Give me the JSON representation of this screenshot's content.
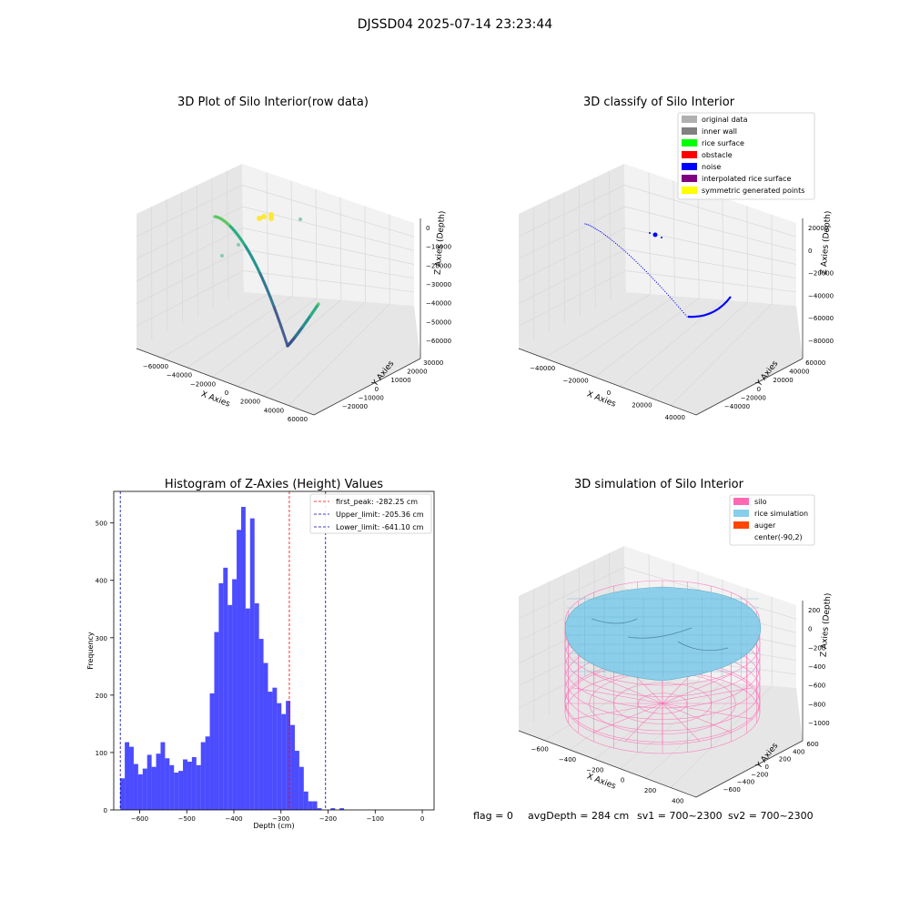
{
  "figure": {
    "suptitle": "DJSSD04 2025-07-14 23:23:44",
    "footer": {
      "flag": "flag = 0",
      "avg_depth": "avgDepth = 284 cm",
      "sv1": "sv1 = 700~2300",
      "sv2": "sv2 = 700~2300"
    }
  },
  "colors": {
    "pane": "#f2f2f2",
    "pane_dark": "#e6e6e6",
    "grid": "#d8d8d8",
    "hist_bar": "#0000ff",
    "first_peak": "#ff0000",
    "limit_line": "#0000aa",
    "noise": "#0000ff",
    "silo": "#ff69b4",
    "rice": "#87ceeb",
    "auger": "#ff4500"
  },
  "chart_data": [
    {
      "type": "scatter",
      "projection": "3d",
      "title": "3D Plot of Silo Interior(row data)",
      "xlabel": "X Axies",
      "ylabel": "Y Axies",
      "zlabel": "Z Axies (Depth)",
      "xticks": [
        "−60000",
        "−40000",
        "−20000",
        "0",
        "20000",
        "40000",
        "60000"
      ],
      "yticks": [
        "−20000",
        "−10000",
        "0",
        "10000",
        "20000",
        "30000"
      ],
      "zticks": [
        "0",
        "−10000",
        "−20000",
        "−30000",
        "−40000",
        "−50000",
        "−60000"
      ],
      "xlim": [
        -60000,
        60000
      ],
      "ylim": [
        -20000,
        30000
      ],
      "zlim": [
        -60000,
        0
      ],
      "colormap": "viridis",
      "description_points": "curved arc of points colored by depth"
    },
    {
      "type": "scatter",
      "projection": "3d",
      "title": "3D classify of Silo Interior",
      "xlabel": "X Axies",
      "ylabel": "Y Axies",
      "zlabel": "Z Axies (Depth)",
      "xticks": [
        "−40000",
        "−20000",
        "0",
        "20000",
        "40000"
      ],
      "yticks": [
        "−40000",
        "−20000",
        "0",
        "20000",
        "40000",
        "60000"
      ],
      "zticks": [
        "20000",
        "0",
        "−20000",
        "−40000",
        "−60000",
        "−80000"
      ],
      "legend": {
        "loc": "upper right",
        "entries": [
          {
            "label": "original data",
            "color": "#b0b0b0"
          },
          {
            "label": "inner wall",
            "color": "#808080"
          },
          {
            "label": "rice surface",
            "color": "#00ff00"
          },
          {
            "label": "obstacle",
            "color": "#ff0000"
          },
          {
            "label": "noise",
            "color": "#0000ff"
          },
          {
            "label": "interpolated rice surface",
            "color": "#800080"
          },
          {
            "label": "symmetric generated points",
            "color": "#ffff00"
          }
        ]
      }
    },
    {
      "type": "bar",
      "title": "Histogram of Z-Axies (Height) Values",
      "xlabel": "Depth (cm)",
      "ylabel": "Frequency",
      "xlim": [
        -655,
        25
      ],
      "ylim": [
        0,
        555
      ],
      "xticks": [
        -600,
        -500,
        -400,
        -300,
        -200,
        -100,
        0
      ],
      "yticks": [
        0,
        100,
        200,
        300,
        400,
        500
      ],
      "bin_width": 9.5,
      "bin_start": -641.1,
      "values": [
        55,
        118,
        110,
        80,
        62,
        72,
        96,
        75,
        98,
        118,
        90,
        78,
        65,
        68,
        88,
        84,
        92,
        78,
        118,
        128,
        203,
        310,
        395,
        422,
        357,
        402,
        488,
        528,
        351,
        508,
        360,
        298,
        256,
        206,
        213,
        186,
        167,
        190,
        148,
        103,
        75,
        32,
        15,
        15,
        3,
        0,
        0,
        3,
        0,
        3
      ],
      "reference_lines": [
        {
          "label": "first_peak: -282.25 cm",
          "x": -282.25,
          "color": "#ff0000"
        },
        {
          "label": "Upper_limit: -205.36 cm",
          "x": -205.36,
          "color": "#0000aa"
        },
        {
          "label": "Lower_limit: -641.10 cm",
          "x": -641.1,
          "color": "#0000aa"
        }
      ],
      "legend": {
        "loc": "upper right"
      }
    },
    {
      "type": "surface",
      "projection": "3d",
      "title": "3D simulation of Silo Interior",
      "xlabel": "X Axies",
      "ylabel": "Y Axies",
      "zlabel": "Z Axies (Depth)",
      "xticks": [
        "−600",
        "−400",
        "−200",
        "0",
        "200",
        "400"
      ],
      "yticks": [
        "−600",
        "−400",
        "−200",
        "0",
        "200",
        "400",
        "600"
      ],
      "zticks": [
        "200",
        "0",
        "−200",
        "−400",
        "−600",
        "−800",
        "−1000"
      ],
      "legend": {
        "loc": "upper right",
        "entries": [
          {
            "label": "silo",
            "color": "#ff69b4"
          },
          {
            "label": "rice simulation",
            "color": "#87ceeb"
          },
          {
            "label": "auger",
            "color": "#ff4500"
          },
          {
            "label": "center(-90,2)",
            "color": ""
          }
        ]
      }
    }
  ]
}
